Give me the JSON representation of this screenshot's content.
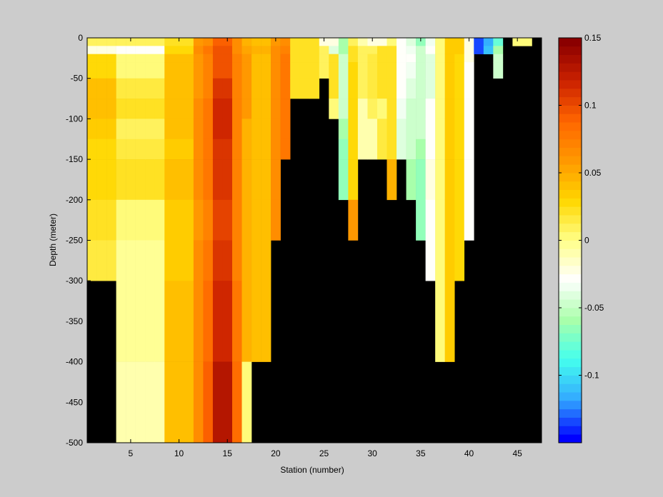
{
  "chart_data": {
    "type": "heatmap",
    "title": "",
    "xlabel": "Station (number)",
    "ylabel": "Depth (meter)",
    "xlim": [
      0.5,
      47.5
    ],
    "ylim": [
      -500,
      0
    ],
    "xticks": [
      5,
      10,
      15,
      20,
      25,
      30,
      35,
      40,
      45
    ],
    "yticks": [
      0,
      -50,
      -100,
      -150,
      -200,
      -250,
      -300,
      -350,
      -400,
      -450,
      -500
    ],
    "colorbar": {
      "range": [
        -0.15,
        0.15
      ],
      "ticks": [
        0.15,
        0.1,
        0.05,
        0,
        -0.05,
        -0.1
      ],
      "colors": [
        "#0000ff",
        "#33aaff",
        "#44ffee",
        "#aaffaa",
        "#ffffff",
        "#ffff88",
        "#ffd700",
        "#ff9900",
        "#ff6600",
        "#cc2200",
        "#8b0000"
      ]
    },
    "masked_color": "#000000",
    "grid": false,
    "depth_bins": [
      0,
      -10,
      -20,
      -30,
      -50,
      -75,
      -100,
      -125,
      -150,
      -200,
      -250,
      -300,
      -400,
      -500
    ],
    "stations": [
      {
        "station": 1,
        "max_depth": 500,
        "values": [
          0.01,
          -0.02,
          0.03,
          0.03,
          0.04,
          0.04,
          0.035,
          0.03,
          0.03,
          0.02,
          0.015,
          null,
          null
        ]
      },
      {
        "station": 2,
        "max_depth": 500,
        "values": [
          0.01,
          -0.02,
          0.03,
          0.03,
          0.04,
          0.04,
          0.035,
          0.03,
          0.03,
          0.02,
          0.015,
          null,
          null
        ]
      },
      {
        "station": 3,
        "max_depth": 500,
        "values": [
          0.01,
          -0.02,
          0.03,
          0.03,
          0.04,
          0.04,
          0.035,
          0.03,
          0.03,
          0.02,
          0.015,
          null,
          null
        ]
      },
      {
        "station": 4,
        "max_depth": 500,
        "values": [
          0.01,
          -0.03,
          0.0,
          0.005,
          0.015,
          0.02,
          0.01,
          0.015,
          0.02,
          0.0,
          -0.005,
          -0.005,
          -0.01
        ]
      },
      {
        "station": 5,
        "max_depth": 500,
        "values": [
          0.01,
          -0.03,
          0.0,
          0.005,
          0.015,
          0.02,
          0.01,
          0.015,
          0.02,
          0.0,
          -0.005,
          -0.005,
          -0.01
        ]
      },
      {
        "station": 6,
        "max_depth": 500,
        "values": [
          0.01,
          -0.03,
          0.0,
          0.005,
          0.015,
          0.02,
          0.01,
          0.015,
          0.02,
          0.0,
          -0.005,
          -0.005,
          -0.01
        ]
      },
      {
        "station": 7,
        "max_depth": 500,
        "values": [
          0.01,
          -0.03,
          0.0,
          0.005,
          0.015,
          0.02,
          0.01,
          0.015,
          0.02,
          0.0,
          -0.005,
          -0.005,
          -0.01
        ]
      },
      {
        "station": 8,
        "max_depth": 500,
        "values": [
          0.01,
          -0.03,
          0.0,
          0.005,
          0.015,
          0.02,
          0.01,
          0.015,
          0.02,
          0.0,
          -0.005,
          -0.005,
          -0.01
        ]
      },
      {
        "station": 9,
        "max_depth": 500,
        "values": [
          0.02,
          0.03,
          0.04,
          0.04,
          0.04,
          0.04,
          0.04,
          0.035,
          0.04,
          0.035,
          0.035,
          0.04,
          0.04
        ]
      },
      {
        "station": 10,
        "max_depth": 500,
        "values": [
          0.02,
          0.03,
          0.04,
          0.04,
          0.04,
          0.04,
          0.04,
          0.035,
          0.04,
          0.035,
          0.035,
          0.04,
          0.04
        ]
      },
      {
        "station": 11,
        "max_depth": 500,
        "values": [
          0.02,
          0.03,
          0.04,
          0.04,
          0.04,
          0.04,
          0.04,
          0.035,
          0.04,
          0.035,
          0.035,
          0.04,
          0.04
        ]
      },
      {
        "station": 12,
        "max_depth": 500,
        "values": [
          0.06,
          0.065,
          0.06,
          0.06,
          0.06,
          0.065,
          0.065,
          0.065,
          0.065,
          0.06,
          0.065,
          0.065,
          0.07
        ]
      },
      {
        "station": 13,
        "max_depth": 500,
        "values": [
          0.07,
          0.08,
          0.075,
          0.075,
          0.075,
          0.08,
          0.08,
          0.08,
          0.08,
          0.075,
          0.08,
          0.085,
          0.09
        ]
      },
      {
        "station": 14,
        "max_depth": 500,
        "values": [
          0.09,
          0.1,
          0.1,
          0.1,
          0.11,
          0.115,
          0.115,
          0.11,
          0.11,
          0.105,
          0.11,
          0.115,
          0.13
        ]
      },
      {
        "station": 15,
        "max_depth": 500,
        "values": [
          0.09,
          0.1,
          0.1,
          0.1,
          0.11,
          0.115,
          0.115,
          0.11,
          0.11,
          0.105,
          0.11,
          0.115,
          0.13
        ]
      },
      {
        "station": 16,
        "max_depth": 500,
        "values": [
          0.07,
          0.07,
          0.075,
          0.075,
          0.075,
          0.075,
          0.075,
          0.075,
          0.075,
          0.075,
          0.075,
          0.08,
          0.085
        ]
      },
      {
        "station": 17,
        "max_depth": 500,
        "values": [
          0.05,
          0.055,
          0.06,
          0.06,
          0.06,
          0.06,
          0.05,
          0.05,
          0.05,
          0.05,
          0.05,
          0.045,
          0.005
        ]
      },
      {
        "station": 18,
        "max_depth": 400,
        "values": [
          0.04,
          0.045,
          0.04,
          0.04,
          0.04,
          0.04,
          0.04,
          0.04,
          0.04,
          0.04,
          0.04,
          0.04,
          null
        ]
      },
      {
        "station": 19,
        "max_depth": 400,
        "values": [
          0.04,
          0.045,
          0.04,
          0.04,
          0.04,
          0.04,
          0.04,
          0.04,
          0.04,
          0.04,
          0.04,
          0.04,
          null
        ]
      },
      {
        "station": 20,
        "max_depth": 250,
        "values": [
          0.06,
          0.065,
          0.065,
          0.065,
          0.065,
          0.065,
          0.065,
          0.065,
          0.065,
          0.065,
          null,
          null,
          null
        ]
      },
      {
        "station": 21,
        "max_depth": 150,
        "values": [
          0.07,
          0.075,
          0.08,
          0.08,
          0.08,
          0.08,
          0.08,
          0.08,
          null,
          null,
          null,
          null,
          null
        ]
      },
      {
        "station": 22,
        "max_depth": 75,
        "values": [
          0.02,
          0.02,
          0.02,
          0.02,
          0.02,
          null,
          null,
          null,
          null,
          null,
          null,
          null,
          null
        ]
      },
      {
        "station": 23,
        "max_depth": 75,
        "values": [
          0.02,
          0.02,
          0.02,
          0.02,
          0.02,
          null,
          null,
          null,
          null,
          null,
          null,
          null,
          null
        ]
      },
      {
        "station": 24,
        "max_depth": 75,
        "values": [
          0.02,
          0.02,
          0.02,
          0.02,
          0.02,
          null,
          null,
          null,
          null,
          null,
          null,
          null,
          null
        ]
      },
      {
        "station": 25,
        "max_depth": 50,
        "values": [
          -0.02,
          0.01,
          0.01,
          0.01,
          null,
          null,
          null,
          null,
          null,
          null,
          null,
          null,
          null
        ]
      },
      {
        "station": 26,
        "max_depth": 100,
        "values": [
          -0.02,
          -0.04,
          0.02,
          0.02,
          0.02,
          0.0,
          null,
          null,
          null,
          null,
          null,
          null,
          null
        ]
      },
      {
        "station": 27,
        "max_depth": 200,
        "values": [
          -0.06,
          -0.06,
          -0.05,
          -0.05,
          -0.05,
          -0.05,
          -0.06,
          -0.07,
          -0.07,
          null,
          null,
          null,
          null
        ]
      },
      {
        "station": 28,
        "max_depth": 250,
        "values": [
          0.01,
          0.02,
          0.02,
          0.03,
          0.03,
          0.03,
          0.03,
          0.03,
          0.03,
          0.06,
          null,
          null,
          null
        ]
      },
      {
        "station": 29,
        "max_depth": 150,
        "values": [
          -0.01,
          0.01,
          0.01,
          0.01,
          0.01,
          -0.01,
          -0.01,
          -0.01,
          null,
          null,
          null,
          null,
          null
        ]
      },
      {
        "station": 30,
        "max_depth": 150,
        "values": [
          -0.02,
          0.01,
          0.015,
          0.015,
          0.015,
          0.01,
          -0.01,
          -0.01,
          null,
          null,
          null,
          null,
          null
        ]
      },
      {
        "station": 31,
        "max_depth": 150,
        "values": [
          -0.02,
          0.02,
          0.02,
          0.02,
          0.02,
          0.0,
          0.015,
          0.015,
          null,
          null,
          null,
          null,
          null
        ]
      },
      {
        "station": 32,
        "max_depth": 200,
        "values": [
          0.0,
          0.02,
          0.02,
          0.02,
          0.02,
          0.02,
          0.02,
          0.02,
          0.05,
          null,
          null,
          null,
          null
        ]
      },
      {
        "station": 33,
        "max_depth": 150,
        "values": [
          -0.03,
          -0.03,
          -0.03,
          -0.03,
          -0.03,
          -0.035,
          -0.04,
          -0.04,
          null,
          null,
          null,
          null,
          null
        ]
      },
      {
        "station": 34,
        "max_depth": 200,
        "values": [
          -0.04,
          -0.035,
          -0.03,
          -0.035,
          -0.04,
          -0.045,
          -0.045,
          -0.045,
          -0.06,
          null,
          null,
          null,
          null
        ]
      },
      {
        "station": 35,
        "max_depth": 250,
        "values": [
          -0.07,
          -0.05,
          -0.05,
          -0.05,
          -0.05,
          -0.05,
          -0.05,
          -0.06,
          -0.07,
          -0.07,
          null,
          null,
          null
        ]
      },
      {
        "station": 36,
        "max_depth": 300,
        "values": [
          -0.035,
          -0.03,
          -0.04,
          -0.04,
          -0.04,
          -0.03,
          -0.03,
          -0.03,
          -0.025,
          -0.03,
          -0.03,
          null,
          null
        ]
      },
      {
        "station": 37,
        "max_depth": 400,
        "values": [
          0.0,
          0.005,
          0.005,
          0.005,
          0.005,
          0.005,
          0.005,
          0.005,
          0.005,
          0.005,
          0.005,
          0.005,
          null
        ]
      },
      {
        "station": 38,
        "max_depth": 400,
        "values": [
          0.035,
          0.035,
          0.035,
          0.035,
          0.035,
          0.035,
          0.035,
          0.035,
          0.035,
          0.035,
          0.035,
          0.035,
          null
        ]
      },
      {
        "station": 39,
        "max_depth": 300,
        "values": [
          0.035,
          0.035,
          0.03,
          0.03,
          0.03,
          0.03,
          0.03,
          0.03,
          0.03,
          0.03,
          0.03,
          null,
          null
        ]
      },
      {
        "station": 40,
        "max_depth": 250,
        "values": [
          -0.02,
          -0.02,
          -0.02,
          -0.03,
          -0.03,
          -0.03,
          -0.03,
          -0.03,
          -0.03,
          -0.03,
          null,
          null,
          null
        ]
      },
      {
        "station": 41,
        "max_depth": 20,
        "values": [
          -0.14,
          -0.14,
          null,
          null,
          null,
          null,
          null,
          null,
          null,
          null,
          null,
          null,
          null
        ]
      },
      {
        "station": 42,
        "max_depth": 20,
        "values": [
          -0.12,
          -0.11,
          null,
          null,
          null,
          null,
          null,
          null,
          null,
          null,
          null,
          null,
          null
        ]
      },
      {
        "station": 43,
        "max_depth": 50,
        "values": [
          -0.08,
          -0.06,
          -0.05,
          -0.05,
          null,
          null,
          null,
          null,
          null,
          null,
          null,
          null,
          null
        ]
      },
      {
        "station": 44,
        "max_depth": 0,
        "values": [
          null,
          null,
          null,
          null,
          null,
          null,
          null,
          null,
          null,
          null,
          null,
          null,
          null
        ]
      },
      {
        "station": 45,
        "max_depth": 20,
        "values": [
          0.0,
          null,
          null,
          null,
          null,
          null,
          null,
          null,
          null,
          null,
          null,
          null,
          null
        ]
      },
      {
        "station": 46,
        "max_depth": 20,
        "values": [
          0.0,
          null,
          null,
          null,
          null,
          null,
          null,
          null,
          null,
          null,
          null,
          null,
          null
        ]
      },
      {
        "station": 47,
        "max_depth": 0,
        "values": [
          null,
          null,
          null,
          null,
          null,
          null,
          null,
          null,
          null,
          null,
          null,
          null,
          null
        ]
      }
    ]
  }
}
